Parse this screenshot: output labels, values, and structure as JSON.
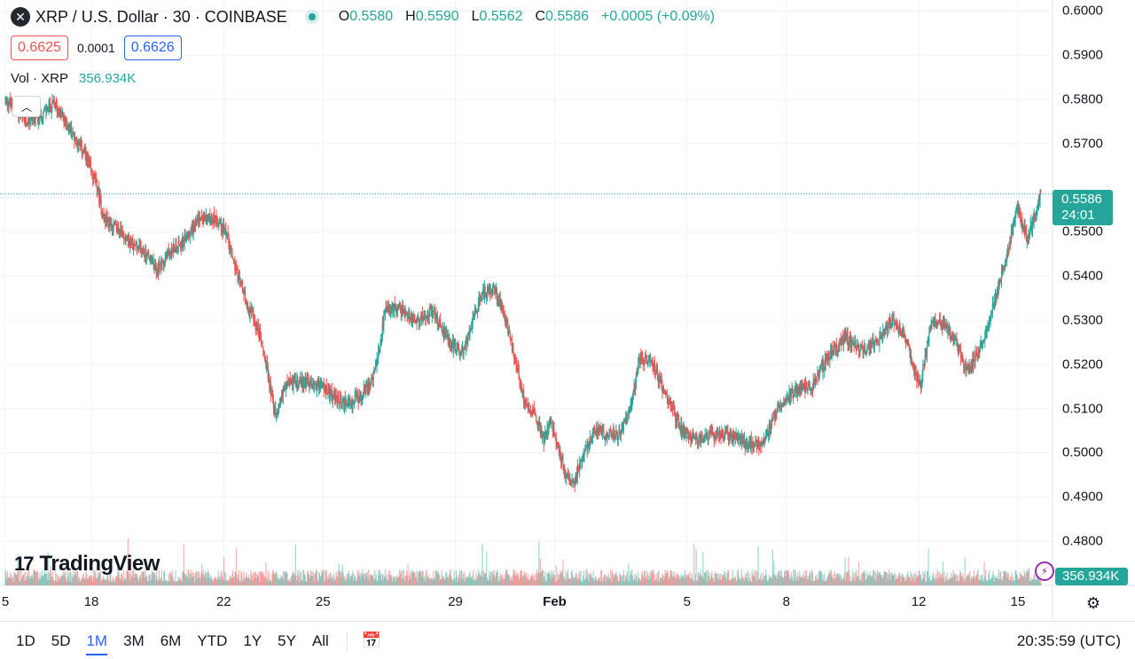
{
  "header": {
    "symbol_title": "XRP / U.S. Dollar · 30 · COINBASE",
    "logo_icon": "xrp-logo-icon",
    "ohlc": {
      "o_key": "O",
      "o_val": "0.5580",
      "h_key": "H",
      "h_val": "0.5590",
      "l_key": "L",
      "l_val": "0.5562",
      "c_key": "C",
      "c_val": "0.5586",
      "change": "+0.0005 (+0.09%)"
    },
    "sell_price": "0.6625",
    "spread": "0.0001",
    "buy_price": "0.6626",
    "vol_label": "Vol · XRP",
    "vol_value": "356.934K"
  },
  "price_tag": {
    "price": "0.5586",
    "countdown": "24:01"
  },
  "volume_tag": "356.934K",
  "branding": {
    "logo_text": "TradingView",
    "logo_mark": "17"
  },
  "bottom_bar": {
    "ranges": [
      "1D",
      "5D",
      "1M",
      "3M",
      "6M",
      "YTD",
      "1Y",
      "5Y",
      "All"
    ],
    "active_range": "1M",
    "time": "20:35:59 (UTC)"
  },
  "colors": {
    "up": "#26a69a",
    "down": "#ef5350",
    "accent": "#2962ff"
  },
  "chart_data": {
    "type": "candlestick",
    "interval": "30",
    "y_axis": {
      "ticks": [
        "0.6000",
        "0.5900",
        "0.5800",
        "0.5700",
        "0.5500",
        "0.5400",
        "0.5300",
        "0.5200",
        "0.5100",
        "0.5000",
        "0.4900",
        "0.4800"
      ],
      "range": [
        0.475,
        0.6005
      ]
    },
    "x_axis": {
      "ticks": [
        {
          "label": "5",
          "bold": false,
          "day": 15.4
        },
        {
          "label": "18",
          "bold": false,
          "day": 18
        },
        {
          "label": "22",
          "bold": false,
          "day": 22
        },
        {
          "label": "25",
          "bold": false,
          "day": 25
        },
        {
          "label": "29",
          "bold": false,
          "day": 29
        },
        {
          "label": "Feb",
          "bold": true,
          "day": 32
        },
        {
          "label": "5",
          "bold": false,
          "day": 36
        },
        {
          "label": "8",
          "bold": false,
          "day": 39
        },
        {
          "label": "12",
          "bold": false,
          "day": 43
        },
        {
          "label": "15",
          "bold": false,
          "day": 46
        }
      ]
    },
    "last_price": 0.5586,
    "price_path": [
      [
        15.4,
        0.58
      ],
      [
        15.7,
        0.578
      ],
      [
        16.0,
        0.575
      ],
      [
        16.4,
        0.576
      ],
      [
        16.9,
        0.579
      ],
      [
        17.3,
        0.574
      ],
      [
        17.8,
        0.568
      ],
      [
        18.2,
        0.56
      ],
      [
        18.4,
        0.553
      ],
      [
        18.9,
        0.55
      ],
      [
        19.3,
        0.547
      ],
      [
        19.7,
        0.545
      ],
      [
        20.0,
        0.541
      ],
      [
        20.3,
        0.545
      ],
      [
        20.8,
        0.548
      ],
      [
        21.3,
        0.553
      ],
      [
        21.8,
        0.553
      ],
      [
        22.1,
        0.55
      ],
      [
        22.4,
        0.541
      ],
      [
        22.7,
        0.534
      ],
      [
        23.1,
        0.527
      ],
      [
        23.3,
        0.52
      ],
      [
        23.6,
        0.508
      ],
      [
        23.8,
        0.514
      ],
      [
        24.0,
        0.516
      ],
      [
        24.5,
        0.516
      ],
      [
        25.0,
        0.515
      ],
      [
        25.4,
        0.512
      ],
      [
        25.8,
        0.511
      ],
      [
        26.2,
        0.513
      ],
      [
        26.6,
        0.518
      ],
      [
        26.9,
        0.532
      ],
      [
        27.3,
        0.533
      ],
      [
        27.8,
        0.53
      ],
      [
        28.3,
        0.532
      ],
      [
        28.8,
        0.526
      ],
      [
        29.2,
        0.522
      ],
      [
        29.5,
        0.528
      ],
      [
        29.8,
        0.536
      ],
      [
        30.2,
        0.537
      ],
      [
        30.5,
        0.531
      ],
      [
        30.8,
        0.522
      ],
      [
        31.1,
        0.512
      ],
      [
        31.4,
        0.509
      ],
      [
        31.7,
        0.503
      ],
      [
        31.9,
        0.507
      ],
      [
        32.3,
        0.496
      ],
      [
        32.6,
        0.493
      ],
      [
        32.9,
        0.5
      ],
      [
        33.2,
        0.505
      ],
      [
        33.6,
        0.504
      ],
      [
        34.0,
        0.504
      ],
      [
        34.3,
        0.51
      ],
      [
        34.6,
        0.522
      ],
      [
        35.0,
        0.52
      ],
      [
        35.4,
        0.513
      ],
      [
        35.8,
        0.506
      ],
      [
        36.3,
        0.503
      ],
      [
        36.8,
        0.504
      ],
      [
        37.3,
        0.504
      ],
      [
        37.8,
        0.502
      ],
      [
        38.3,
        0.502
      ],
      [
        38.8,
        0.511
      ],
      [
        39.3,
        0.514
      ],
      [
        39.8,
        0.515
      ],
      [
        40.3,
        0.522
      ],
      [
        40.8,
        0.526
      ],
      [
        41.3,
        0.523
      ],
      [
        41.8,
        0.525
      ],
      [
        42.2,
        0.53
      ],
      [
        42.6,
        0.527
      ],
      [
        42.9,
        0.518
      ],
      [
        43.1,
        0.516
      ],
      [
        43.4,
        0.53
      ],
      [
        43.8,
        0.529
      ],
      [
        44.2,
        0.524
      ],
      [
        44.5,
        0.518
      ],
      [
        44.9,
        0.524
      ],
      [
        45.3,
        0.534
      ],
      [
        45.7,
        0.545
      ],
      [
        46.0,
        0.556
      ],
      [
        46.3,
        0.548
      ],
      [
        46.7,
        0.5586
      ]
    ]
  }
}
